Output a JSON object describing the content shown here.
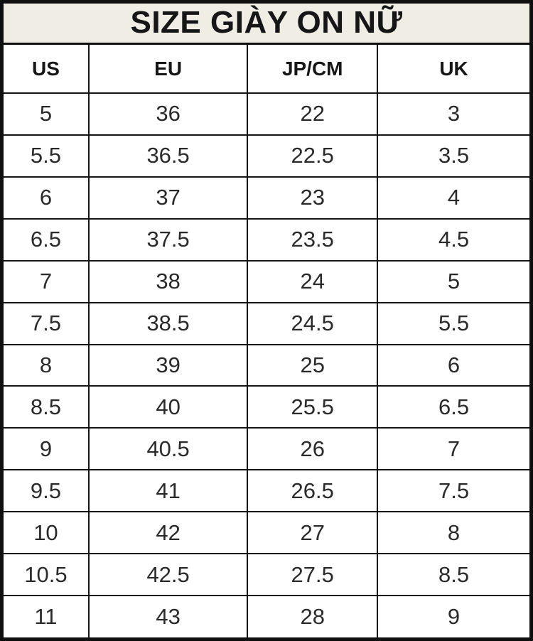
{
  "title": "SIZE GIÀY ON NỮ",
  "chart_data": {
    "type": "table",
    "title": "SIZE GIÀY ON NỮ",
    "columns": [
      "US",
      "EU",
      "JP/CM",
      "UK"
    ],
    "rows": [
      [
        "5",
        "36",
        "22",
        "3"
      ],
      [
        "5.5",
        "36.5",
        "22.5",
        "3.5"
      ],
      [
        "6",
        "37",
        "23",
        "4"
      ],
      [
        "6.5",
        "37.5",
        "23.5",
        "4.5"
      ],
      [
        "7",
        "38",
        "24",
        "5"
      ],
      [
        "7.5",
        "38.5",
        "24.5",
        "5.5"
      ],
      [
        "8",
        "39",
        "25",
        "6"
      ],
      [
        "8.5",
        "40",
        "25.5",
        "6.5"
      ],
      [
        "9",
        "40.5",
        "26",
        "7"
      ],
      [
        "9.5",
        "41",
        "26.5",
        "7.5"
      ],
      [
        "10",
        "42",
        "27",
        "8"
      ],
      [
        "10.5",
        "42.5",
        "27.5",
        "8.5"
      ],
      [
        "11",
        "43",
        "28",
        "9"
      ]
    ]
  },
  "colors": {
    "title_background": "#f0ede5",
    "border": "#0f0f0f",
    "text": "#1c1c1c",
    "row_background": "#ffffff"
  }
}
